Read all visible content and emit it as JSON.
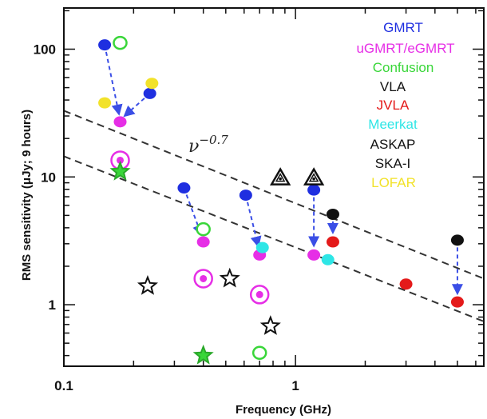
{
  "chart_data": {
    "type": "scatter",
    "xlabel": "Frequency (GHz)",
    "ylabel": "RMS sensitivity (μJy; 9 hours)",
    "xscale": "log",
    "yscale": "log",
    "xlim": [
      0.1,
      6.5
    ],
    "ylim": [
      0.33,
      210
    ],
    "x_ticks": [
      {
        "value": 0.1,
        "label": "0.1"
      },
      {
        "value": 1,
        "label": "1"
      }
    ],
    "y_ticks": [
      {
        "value": 1,
        "label": "1"
      },
      {
        "value": 10,
        "label": "10"
      },
      {
        "value": 100,
        "label": "100"
      }
    ],
    "legend_position": "top-right",
    "legend": [
      {
        "label": "GMRT",
        "color": "#1f2fe0"
      },
      {
        "label": "uGMRT/eGMRT",
        "color": "#e62ee6"
      },
      {
        "label": "Confusion",
        "color": "#39d639"
      },
      {
        "label": "VLA",
        "color": "#111111"
      },
      {
        "label": "JVLA",
        "color": "#e41a1a"
      },
      {
        "label": "Meerkat",
        "color": "#2ee6e6"
      },
      {
        "label": "ASKAP",
        "color": "#111111"
      },
      {
        "label": "SKA-I",
        "color": "#111111"
      },
      {
        "label": "LOFAR",
        "color": "#f2e22a"
      }
    ],
    "annotation": {
      "base": "ν",
      "exponent": "−0.7"
    },
    "series": [
      {
        "name": "GMRT",
        "color": "#1f2fe0",
        "marker": "filled-circle",
        "points": [
          {
            "x": 0.15,
            "y": 108
          },
          {
            "x": 0.235,
            "y": 45
          },
          {
            "x": 0.33,
            "y": 8.2
          },
          {
            "x": 0.61,
            "y": 7.2
          },
          {
            "x": 1.2,
            "y": 7.9
          }
        ]
      },
      {
        "name": "uGMRT/eGMRT",
        "color": "#e62ee6",
        "marker": "filled-circle",
        "points": [
          {
            "x": 0.175,
            "y": 27
          },
          {
            "x": 0.4,
            "y": 3.1
          },
          {
            "x": 0.7,
            "y": 2.45
          },
          {
            "x": 1.2,
            "y": 2.45
          }
        ]
      },
      {
        "name": "uGMRT/eGMRT",
        "color": "#e62ee6",
        "marker": "ringed-circle",
        "points": [
          {
            "x": 0.175,
            "y": 13.5
          },
          {
            "x": 0.4,
            "y": 1.6
          },
          {
            "x": 0.7,
            "y": 1.2
          }
        ]
      },
      {
        "name": "Confusion",
        "color": "#39d639",
        "marker": "open-circle",
        "points": [
          {
            "x": 0.175,
            "y": 112
          },
          {
            "x": 0.4,
            "y": 3.9
          },
          {
            "x": 0.7,
            "y": 0.42
          }
        ]
      },
      {
        "name": "Confusion",
        "color": "#39d639",
        "marker": "star",
        "points": [
          {
            "x": 0.175,
            "y": 11
          },
          {
            "x": 0.4,
            "y": 0.4
          }
        ]
      },
      {
        "name": "VLA",
        "color": "#111111",
        "marker": "filled-circle",
        "points": [
          {
            "x": 1.45,
            "y": 5.1
          },
          {
            "x": 5.0,
            "y": 3.2
          }
        ]
      },
      {
        "name": "JVLA",
        "color": "#e41a1a",
        "marker": "filled-circle",
        "points": [
          {
            "x": 1.45,
            "y": 3.1
          },
          {
            "x": 3.0,
            "y": 1.45
          },
          {
            "x": 5.0,
            "y": 1.05
          }
        ]
      },
      {
        "name": "Meerkat",
        "color": "#2ee6e6",
        "marker": "filled-circle",
        "points": [
          {
            "x": 0.72,
            "y": 2.8
          },
          {
            "x": 1.38,
            "y": 2.25
          }
        ]
      },
      {
        "name": "ASKAP",
        "color": "#111111",
        "marker": "triangle",
        "points": [
          {
            "x": 0.86,
            "y": 9.8
          },
          {
            "x": 1.2,
            "y": 9.8
          }
        ]
      },
      {
        "name": "SKA-I",
        "color": "#111111",
        "marker": "star",
        "points": [
          {
            "x": 0.23,
            "y": 1.4
          },
          {
            "x": 0.52,
            "y": 1.6
          },
          {
            "x": 0.78,
            "y": 0.68
          }
        ]
      },
      {
        "name": "LOFAR",
        "color": "#f2e22a",
        "marker": "filled-circle",
        "points": [
          {
            "x": 0.15,
            "y": 38
          },
          {
            "x": 0.24,
            "y": 54
          }
        ]
      }
    ],
    "trend_lines": [
      {
        "points": [
          {
            "x": 0.1,
            "y": 33
          },
          {
            "x": 6.5,
            "y": 1.6
          }
        ]
      },
      {
        "points": [
          {
            "x": 0.1,
            "y": 14.5
          },
          {
            "x": 6.5,
            "y": 0.74
          }
        ]
      }
    ],
    "arrows": [
      {
        "from": {
          "x": 0.15,
          "y": 108
        },
        "to": {
          "x": 0.175,
          "y": 28
        }
      },
      {
        "from": {
          "x": 0.235,
          "y": 45
        },
        "to": {
          "x": 0.175,
          "y": 28
        }
      },
      {
        "from": {
          "x": 0.33,
          "y": 8.2
        },
        "to": {
          "x": 0.4,
          "y": 3.2
        }
      },
      {
        "from": {
          "x": 0.61,
          "y": 7.2
        },
        "to": {
          "x": 0.7,
          "y": 2.6
        }
      },
      {
        "from": {
          "x": 1.2,
          "y": 7.9
        },
        "to": {
          "x": 1.2,
          "y": 2.6
        }
      },
      {
        "from": {
          "x": 1.45,
          "y": 5.1
        },
        "to": {
          "x": 1.45,
          "y": 3.3
        }
      },
      {
        "from": {
          "x": 5.0,
          "y": 3.2
        },
        "to": {
          "x": 5.0,
          "y": 1.1
        }
      }
    ]
  }
}
